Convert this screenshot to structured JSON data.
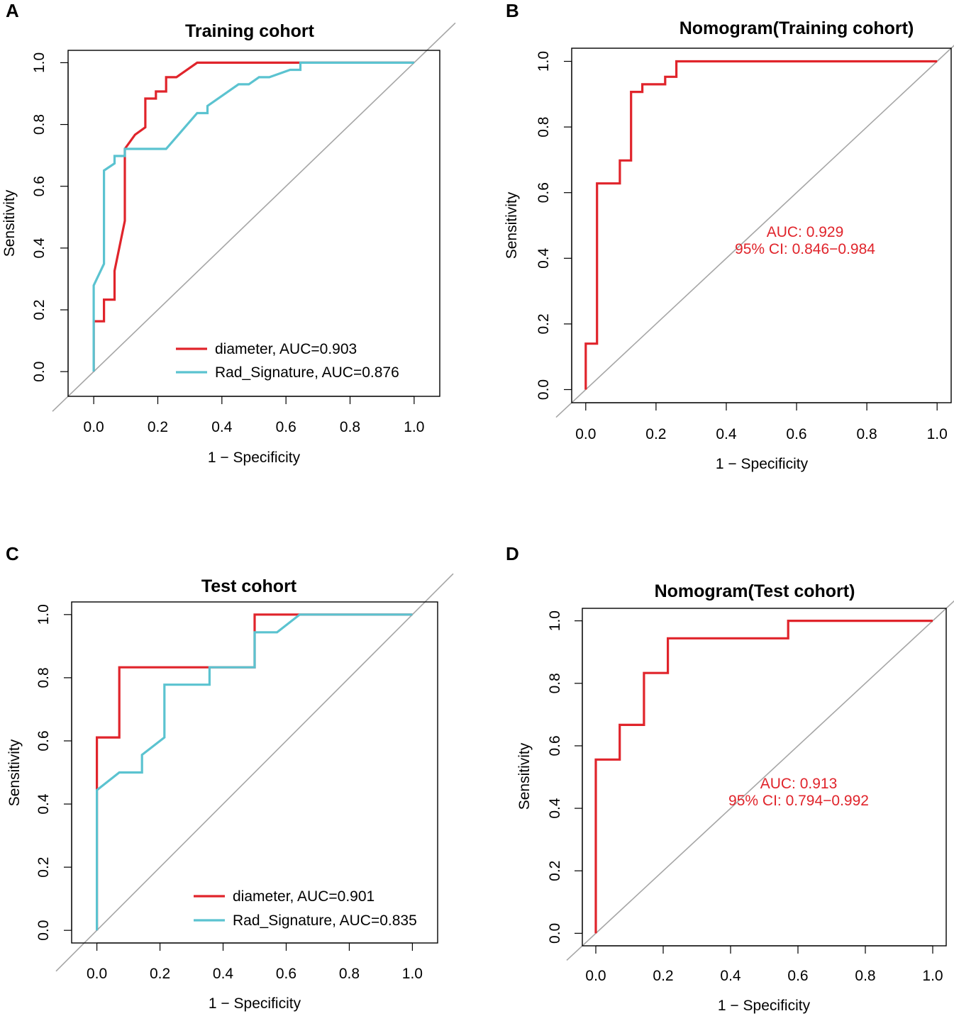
{
  "figure": {
    "colors": {
      "diameter": "#e0242b",
      "rad_signature": "#5bc3d0",
      "reference": "#a6a6a6",
      "axis": "#000000",
      "annotation": "#e0242b"
    }
  },
  "chart_data": [
    {
      "panel": "A",
      "type": "line",
      "title": "Training cohort",
      "xlabel": "1 − Specificity",
      "ylabel": "Sensitivity",
      "xlim": [
        -0.08,
        1.08
      ],
      "ylim": [
        -0.08,
        1.04
      ],
      "xticks": [
        "0.0",
        "0.2",
        "0.4",
        "0.6",
        "0.8",
        "1.0"
      ],
      "yticks": [
        "0.0",
        "0.2",
        "0.4",
        "0.6",
        "0.8",
        "1.0"
      ],
      "legend": {
        "position": "bottom-right",
        "entries": [
          "diameter, AUC=0.903",
          "Rad_Signature, AUC=0.876"
        ]
      },
      "series": [
        {
          "name": "diameter, AUC=0.903",
          "color": "#e0242b",
          "x": [
            0,
            0,
            0.032,
            0.032,
            0.065,
            0.065,
            0.097,
            0.097,
            0.129,
            0.129,
            0.161,
            0.161,
            0.194,
            0.194,
            0.226,
            0.226,
            0.258,
            0.258,
            0.323,
            0.645,
            1.0
          ],
          "y": [
            0,
            0.163,
            0.163,
            0.233,
            0.233,
            0.326,
            0.488,
            0.721,
            0.767,
            0.767,
            0.791,
            0.884,
            0.884,
            0.907,
            0.907,
            0.953,
            0.953,
            0.953,
            1.0,
            1.0,
            1.0
          ]
        },
        {
          "name": "Rad_Signature, AUC=0.876",
          "color": "#5bc3d0",
          "x": [
            0,
            0,
            0.032,
            0.032,
            0.065,
            0.065,
            0.097,
            0.097,
            0.226,
            0.323,
            0.323,
            0.355,
            0.355,
            0.452,
            0.484,
            0.516,
            0.548,
            0.613,
            0.645,
            0.645,
            1.0
          ],
          "y": [
            0,
            0.279,
            0.349,
            0.651,
            0.674,
            0.698,
            0.698,
            0.721,
            0.721,
            0.837,
            0.837,
            0.837,
            0.86,
            0.93,
            0.93,
            0.953,
            0.953,
            0.977,
            0.977,
            1.0,
            1.0
          ]
        }
      ]
    },
    {
      "panel": "B",
      "type": "line",
      "title": "Nomogram(Training cohort)",
      "xlabel": "1 − Specificity",
      "ylabel": "Sensitivity",
      "xlim": [
        -0.04,
        1.04
      ],
      "ylim": [
        -0.04,
        1.04
      ],
      "xticks": [
        "0.0",
        "0.2",
        "0.4",
        "0.6",
        "0.8",
        "1.0"
      ],
      "yticks": [
        "0.0",
        "0.2",
        "0.4",
        "0.6",
        "0.8",
        "1.0"
      ],
      "annotation": {
        "auc": "AUC: 0.929",
        "ci": "95% CI: 0.846−0.984"
      },
      "series": [
        {
          "name": "Nomogram",
          "color": "#e0242b",
          "x": [
            0,
            0,
            0.032,
            0.032,
            0.097,
            0.097,
            0.129,
            0.129,
            0.161,
            0.161,
            0.226,
            0.226,
            0.258,
            0.258,
            1.0
          ],
          "y": [
            0,
            0.14,
            0.14,
            0.628,
            0.628,
            0.698,
            0.698,
            0.907,
            0.907,
            0.93,
            0.93,
            0.953,
            0.953,
            1.0,
            1.0
          ]
        }
      ]
    },
    {
      "panel": "C",
      "type": "line",
      "title": "Test cohort",
      "xlabel": "1 − Specificity",
      "ylabel": "Sensitivity",
      "xlim": [
        -0.08,
        1.08
      ],
      "ylim": [
        -0.04,
        1.04
      ],
      "xticks": [
        "0.0",
        "0.2",
        "0.4",
        "0.6",
        "0.8",
        "1.0"
      ],
      "yticks": [
        "0.0",
        "0.2",
        "0.4",
        "0.6",
        "0.8",
        "1.0"
      ],
      "legend": {
        "position": "bottom-right",
        "entries": [
          "diameter, AUC=0.901",
          "Rad_Signature, AUC=0.835"
        ]
      },
      "series": [
        {
          "name": "diameter, AUC=0.901",
          "color": "#e0242b",
          "x": [
            0,
            0,
            0,
            0.071,
            0.071,
            0.5,
            0.5,
            1.0
          ],
          "y": [
            0,
            0.444,
            0.611,
            0.611,
            0.833,
            0.833,
            1.0,
            1.0
          ]
        },
        {
          "name": "Rad_Signature, AUC=0.835",
          "color": "#5bc3d0",
          "x": [
            0,
            0,
            0.071,
            0.143,
            0.143,
            0.214,
            0.214,
            0.357,
            0.357,
            0.5,
            0.5,
            0.571,
            0.643,
            1.0
          ],
          "y": [
            0,
            0.444,
            0.5,
            0.5,
            0.556,
            0.611,
            0.778,
            0.778,
            0.833,
            0.833,
            0.944,
            0.944,
            1.0,
            1.0
          ]
        }
      ]
    },
    {
      "panel": "D",
      "type": "line",
      "title": "Nomogram(Test cohort)",
      "xlabel": "1 − Specificity",
      "ylabel": "Sensitivity",
      "xlim": [
        -0.04,
        1.04
      ],
      "ylim": [
        -0.04,
        1.04
      ],
      "xticks": [
        "0.0",
        "0.2",
        "0.4",
        "0.6",
        "0.8",
        "1.0"
      ],
      "yticks": [
        "0.0",
        "0.2",
        "0.4",
        "0.6",
        "0.8",
        "1.0"
      ],
      "annotation": {
        "auc": "AUC: 0.913",
        "ci": "95% CI: 0.794−0.992"
      },
      "series": [
        {
          "name": "Nomogram",
          "color": "#e0242b",
          "x": [
            0,
            0,
            0.071,
            0.071,
            0.143,
            0.143,
            0.214,
            0.214,
            0.571,
            0.571,
            1.0
          ],
          "y": [
            0,
            0.556,
            0.556,
            0.667,
            0.667,
            0.833,
            0.833,
            0.944,
            0.944,
            1.0,
            1.0
          ]
        }
      ]
    }
  ]
}
